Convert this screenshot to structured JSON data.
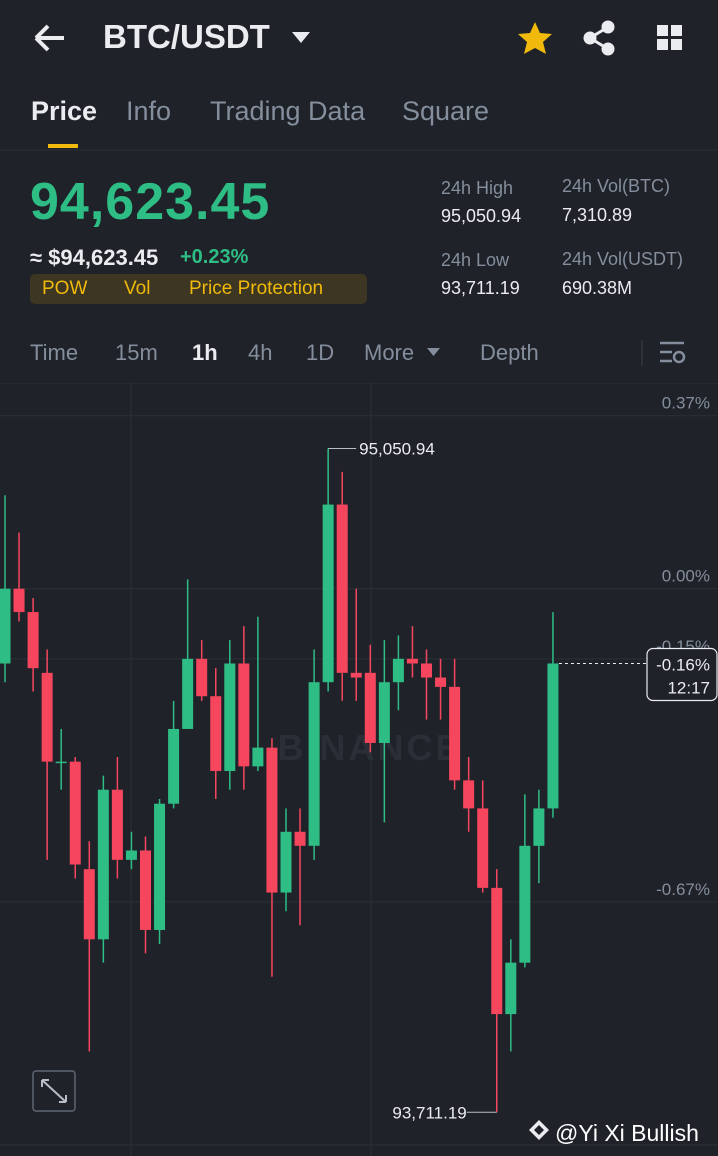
{
  "header": {
    "pair": "BTC/USDT"
  },
  "tabs": [
    "Price",
    "Info",
    "Trading Data",
    "Square"
  ],
  "price": {
    "last": "94,623.45",
    "approx": "≈ $94,623.45",
    "change": "+0.23%",
    "tags": [
      "POW",
      "Vol",
      "Price Protection"
    ]
  },
  "stats": [
    {
      "label": "24h High",
      "value": "95,050.94"
    },
    {
      "label": "24h Vol(BTC)",
      "value": "7,310.89"
    },
    {
      "label": "24h Low",
      "value": "93,711.19"
    },
    {
      "label": "24h Vol(USDT)",
      "value": "690.38M"
    }
  ],
  "intervals": [
    "Time",
    "15m",
    "1h",
    "4h",
    "1D",
    "More",
    "Depth"
  ],
  "chart_data": {
    "type": "candlestick",
    "open": [
      -0.16,
      0.0,
      -0.05,
      -0.18,
      -0.37,
      -0.37,
      -0.6,
      -0.75,
      -0.43,
      -0.58,
      -0.56,
      -0.73,
      -0.46,
      -0.3,
      -0.15,
      -0.23,
      -0.39,
      -0.16,
      -0.38,
      -0.34,
      -0.65,
      -0.52,
      -0.55,
      -0.2,
      0.18,
      -0.18,
      -0.18,
      -0.33,
      -0.2,
      -0.15,
      -0.16,
      -0.19,
      -0.21,
      -0.41,
      -0.47,
      -0.64,
      -0.91,
      -0.8,
      -0.55,
      -0.47
    ],
    "high": [
      0.2,
      0.12,
      -0.02,
      -0.13,
      -0.3,
      -0.36,
      -0.54,
      -0.4,
      -0.36,
      -0.52,
      -0.53,
      -0.45,
      -0.24,
      0.02,
      -0.11,
      -0.17,
      -0.11,
      -0.08,
      -0.06,
      -0.32,
      -0.47,
      -0.47,
      -0.13,
      0.3,
      0.25,
      0.0,
      -0.12,
      -0.11,
      -0.1,
      -0.08,
      -0.13,
      -0.15,
      -0.15,
      -0.36,
      -0.41,
      -0.6,
      -0.75,
      -0.44,
      -0.43,
      -0.05
    ],
    "low": [
      -0.2,
      -0.07,
      -0.22,
      -0.58,
      -0.43,
      -0.62,
      -0.99,
      -0.8,
      -0.62,
      -0.6,
      -0.78,
      -0.76,
      -0.47,
      -0.3,
      -0.24,
      -0.45,
      -0.43,
      -0.43,
      -0.39,
      -0.83,
      -0.69,
      -0.72,
      -0.58,
      -0.22,
      -0.24,
      -0.24,
      -0.35,
      -0.5,
      -0.26,
      -0.19,
      -0.28,
      -0.28,
      -0.43,
      -0.52,
      -0.65,
      -1.12,
      -0.99,
      -0.81,
      -0.63,
      -0.49
    ],
    "close": [
      0.0,
      -0.05,
      -0.17,
      -0.37,
      -0.37,
      -0.59,
      -0.75,
      -0.43,
      -0.58,
      -0.56,
      -0.73,
      -0.46,
      -0.3,
      -0.15,
      -0.23,
      -0.39,
      -0.16,
      -0.38,
      -0.34,
      -0.65,
      -0.52,
      -0.55,
      -0.2,
      0.18,
      -0.18,
      -0.19,
      -0.33,
      -0.2,
      -0.15,
      -0.16,
      -0.19,
      -0.21,
      -0.41,
      -0.47,
      -0.64,
      -0.91,
      -0.8,
      -0.55,
      -0.47,
      -0.16
    ],
    "up_color": "#2ebd85",
    "down_color": "#f6465d",
    "ylim": [
      -1.19,
      0.44
    ],
    "yticks": [
      {
        "value": 0.37,
        "label": "0.37%"
      },
      {
        "value": 0,
        "label": "0.00%"
      },
      {
        "value": -0.15,
        "label": "-0.15%"
      },
      {
        "value": -0.67,
        "label": "-0.67%"
      }
    ],
    "grid": true,
    "high_label": "95,050.94",
    "low_label": "93,711.19",
    "last_label": "-0.16%",
    "countdown": "12:17",
    "watermark": "BINANCE"
  },
  "watermark": "@Yi Xi Bullish"
}
